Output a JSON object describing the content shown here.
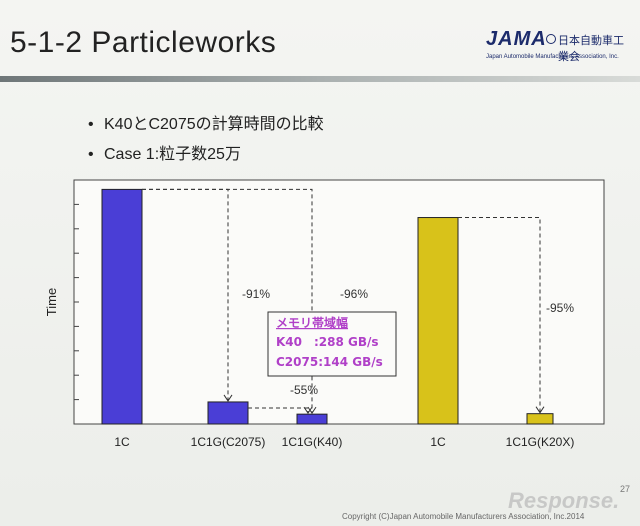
{
  "slide": {
    "title": "5-1-2 Particleworks",
    "logo": {
      "name": "JAMA",
      "jp_name": "日本自動車工業会",
      "en_name": "Japan Automobile Manufacturers Association, Inc."
    },
    "bullets": [
      "K40とC2075の計算時間の比較",
      "Case 1:粒子数25万"
    ],
    "page_number": "27",
    "footer": "Copyright (C)Japan Automobile Manufacturers Association, Inc.2014",
    "watermark": "Response."
  },
  "chart_data": {
    "type": "bar",
    "ylabel": "Time",
    "categories": [
      "1C",
      "1C1G(C2075)",
      "1C1G(K40)",
      "1C",
      "1C1G(K20X)"
    ],
    "values": [
      100,
      9.4,
      4.2,
      88,
      4.4
    ],
    "ylim": [
      0,
      104
    ],
    "colors": [
      "#4a3ed6",
      "#4a3ed6",
      "#4a3ed6",
      "#d8c21a",
      "#d8c21a"
    ],
    "annotations": [
      {
        "text": "-91%",
        "from": 0,
        "to": 1
      },
      {
        "text": "-96%",
        "from": 0,
        "to": 2
      },
      {
        "text": "-55%",
        "from": 1,
        "to": 2
      },
      {
        "text": "-95%",
        "from": 3,
        "to": 4
      }
    ],
    "memory_box": {
      "title": "メモリ帯域幅",
      "lines": [
        "K40　:288 GB/s",
        "C2075:144 GB/s"
      ]
    },
    "accent_color": "#b040c8"
  }
}
